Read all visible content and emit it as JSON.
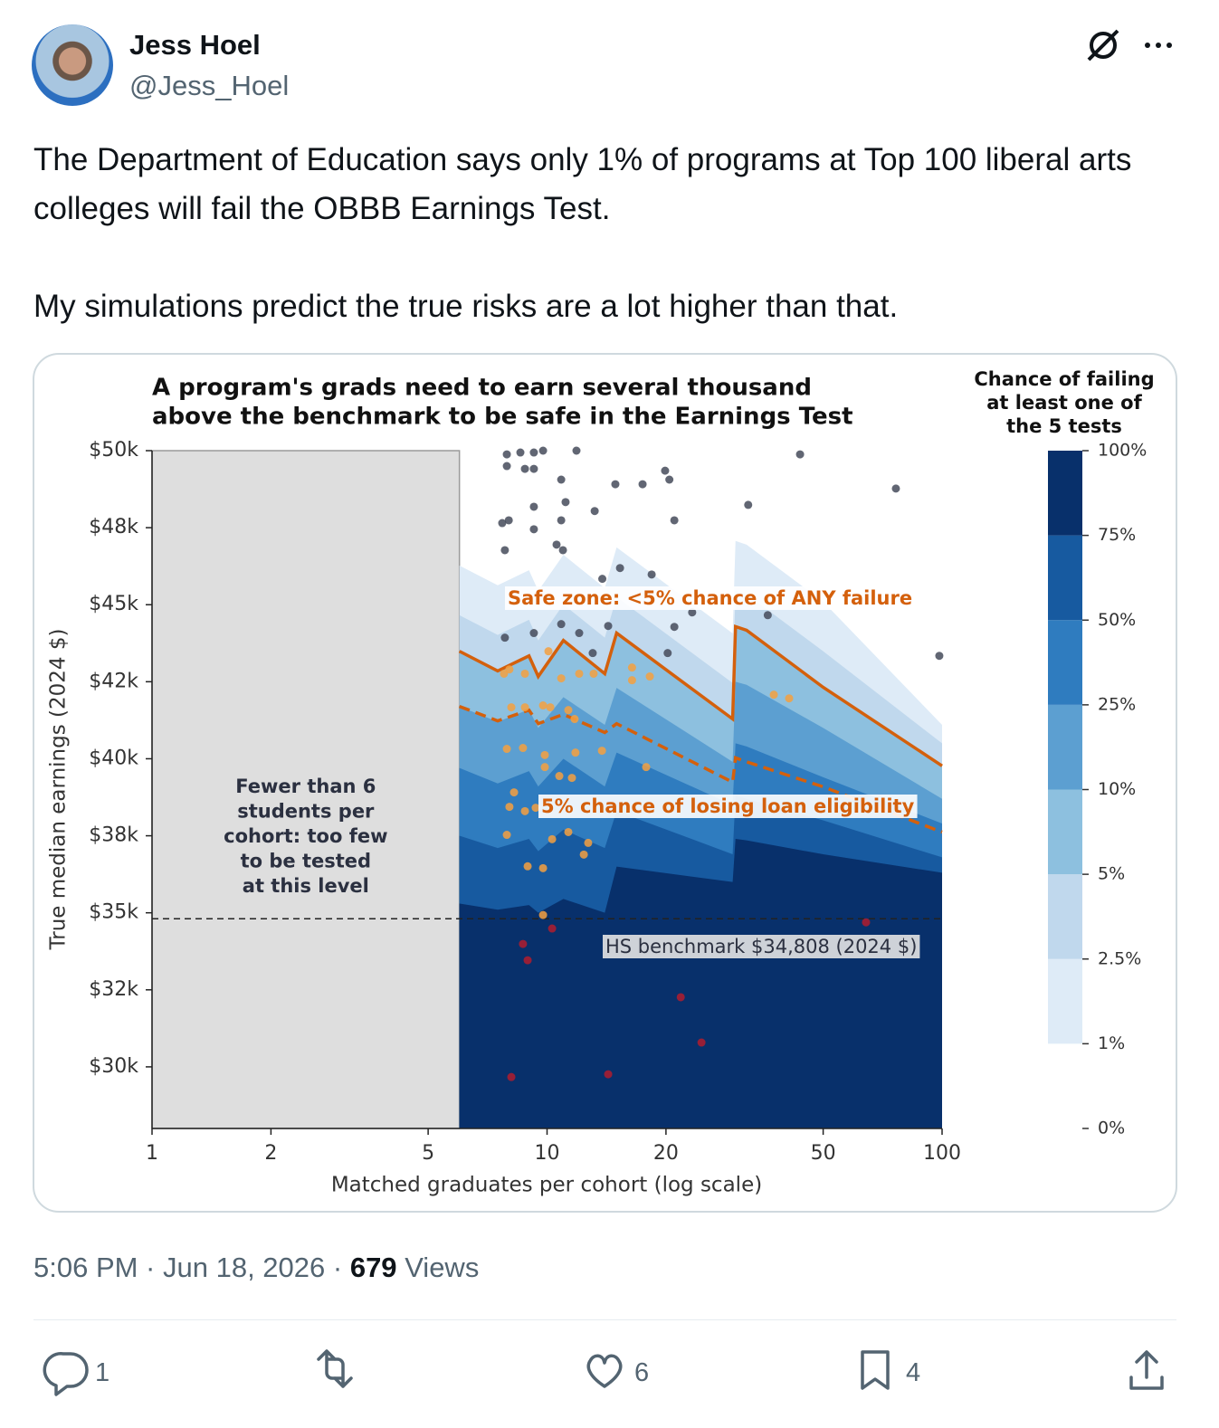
{
  "author": {
    "name": "Jess Hoel",
    "handle": "@Jess_Hoel"
  },
  "text": [
    "The Department of Education says only 1% of programs at Top 100 liberal arts colleges will fail the OBBB Earnings Test.",
    "My simulations predict the true risks are a lot higher than that."
  ],
  "chart_data": {
    "type": "contour",
    "title": [
      "A program's grads need to earn several thousand",
      "above the benchmark to be safe in the Earnings Test"
    ],
    "x_label": "Matched graduates per cohort (log scale)",
    "y_label": "True median earnings (2024 $)",
    "xscale": "log",
    "xlim": [
      1,
      100
    ],
    "xticks": [
      1,
      2,
      5,
      10,
      20,
      50,
      100
    ],
    "ylim": [
      28000,
      50000
    ],
    "yticks": [
      {
        "value": 30000,
        "label": "$30k"
      },
      {
        "value": 32500,
        "label": "$32k"
      },
      {
        "value": 35000,
        "label": "$35k"
      },
      {
        "value": 37500,
        "label": "$38k"
      },
      {
        "value": 40000,
        "label": "$40k"
      },
      {
        "value": 42500,
        "label": "$42k"
      },
      {
        "value": 45000,
        "label": "$45k"
      },
      {
        "value": 47500,
        "label": "$48k"
      },
      {
        "value": 50000,
        "label": "$50k"
      }
    ],
    "min_cohort": 6,
    "gray_zone_label": [
      "Fewer than 6",
      "students per",
      "cohort: too few",
      "to be tested",
      "at this level"
    ],
    "benchmark": 34808,
    "x": [
      6,
      7.5,
      9,
      9.5,
      11,
      14,
      15,
      29.5,
      30,
      32,
      50,
      100
    ],
    "contours": [
      {
        "level": 1,
        "color": "#deebf7",
        "values": [
          46270,
          45630,
          46120,
          45450,
          46620,
          45540,
          46860,
          44070,
          47070,
          46950,
          45100,
          41100
        ]
      },
      {
        "level": 2.5,
        "color": "#c0d8ed",
        "values": [
          44660,
          44020,
          44510,
          43840,
          45010,
          43930,
          45250,
          42460,
          45460,
          45340,
          43490,
          40500
        ]
      },
      {
        "level": 5,
        "color": "#8dc0df",
        "values": [
          43490,
          42850,
          43340,
          42670,
          43840,
          42760,
          44080,
          41290,
          44290,
          44170,
          42320,
          39770
        ]
      },
      {
        "level": 10,
        "color": "#5c9fd1",
        "values": [
          41700,
          41200,
          41600,
          41000,
          42000,
          41100,
          42300,
          39900,
          42500,
          42400,
          41000,
          38700
        ]
      },
      {
        "level": 25,
        "color": "#2f7cbf",
        "values": [
          39700,
          39200,
          39600,
          39100,
          40000,
          39100,
          40200,
          38500,
          40500,
          40400,
          39400,
          37900
        ]
      },
      {
        "level": 50,
        "color": "#175aa0",
        "values": [
          37500,
          37100,
          37400,
          37000,
          37700,
          37100,
          38300,
          36900,
          38800,
          38700,
          38000,
          36800
        ]
      },
      {
        "level": 75,
        "color": "#08306b",
        "values": [
          35300,
          35100,
          35250,
          35000,
          35450,
          35000,
          36500,
          36000,
          37400,
          37350,
          36900,
          36300
        ]
      }
    ],
    "lines": [
      {
        "color": "#d4600c",
        "dashed": false,
        "values": [
          43490,
          42850,
          43340,
          42670,
          43840,
          42760,
          44080,
          41290,
          44290,
          44170,
          42320,
          39770
        ]
      },
      {
        "color": "#d4600c",
        "dashed": true,
        "values": [
          41700,
          41230,
          41580,
          41140,
          41440,
          40850,
          41140,
          39240,
          40030,
          39900,
          39090,
          37620
        ]
      }
    ],
    "scatter": [
      {
        "color": "#454b5a",
        "x": [
          7.91,
          8.56,
          9.26,
          9.77,
          11.87,
          7.91,
          8.79,
          9.26,
          10.86,
          14.89,
          17.45,
          19.9,
          20.4,
          9.26,
          11.14,
          13.2,
          8.0,
          7.7,
          9.26,
          10.86,
          21.0,
          32.3,
          43.7,
          76.4,
          7.82,
          10.57,
          10.97,
          15.3,
          18.4,
          13.8,
          7.82,
          9.26,
          10.86,
          12.06,
          14.28,
          21.0,
          23.3,
          36.2,
          98.4,
          20.2,
          13.05
        ],
        "y": [
          49880,
          49940,
          49940,
          50000,
          50000,
          49500,
          49410,
          49410,
          49060,
          48910,
          48910,
          49350,
          49060,
          48180,
          48330,
          48040,
          47740,
          47650,
          47450,
          47740,
          47740,
          48240,
          49880,
          48770,
          46770,
          46950,
          46770,
          46190,
          45980,
          45840,
          43930,
          44080,
          44370,
          44080,
          44310,
          44280,
          44750,
          44660,
          43340,
          43430,
          43430
        ]
      },
      {
        "color": "#f5a040",
        "x": [
          7.78,
          8.03,
          8.79,
          10.08,
          10.86,
          12.06,
          13.12,
          16.41,
          16.41,
          18.2,
          8.12,
          8.79,
          9.77,
          10.19,
          11.32,
          11.74,
          7.91,
          8.69,
          9.87,
          11.8,
          13.77,
          17.82,
          9.87,
          10.74,
          11.56,
          8.25,
          8.03,
          8.79,
          9.36,
          11.32,
          10.3,
          12.71,
          12.39,
          7.91,
          8.93,
          9.77,
          9.77,
          37.5,
          41.0
        ],
        "y": [
          42760,
          42900,
          42760,
          43490,
          42610,
          42760,
          42760,
          42960,
          42550,
          42670,
          41670,
          41670,
          41730,
          41670,
          41580,
          41290,
          40320,
          40350,
          40120,
          40200,
          40260,
          39730,
          39730,
          39440,
          39380,
          38910,
          38440,
          38300,
          38410,
          37620,
          37390,
          37270,
          36890,
          37530,
          36510,
          36450,
          34930,
          42080,
          41960
        ]
      },
      {
        "color": "#b01c2e",
        "x": [
          8.69,
          8.93,
          10.3,
          8.12,
          14.28,
          21.8,
          24.6,
          64.2
        ],
        "y": [
          33990,
          33460,
          34490,
          29670,
          29760,
          32260,
          30790,
          34690
        ]
      }
    ],
    "annotations": {
      "safe_zone": "Safe zone: <5% chance of ANY failure",
      "loan": "5% chance of losing loan eligibility",
      "benchmark_label": "HS benchmark $34,808 (2024 $)"
    },
    "colorbar": {
      "title": [
        "Chance of failing",
        "at least one of",
        "the 5 tests"
      ],
      "ticks": [
        {
          "value": 0,
          "label": "0%"
        },
        {
          "value": 1,
          "label": "1%"
        },
        {
          "value": 2.5,
          "label": "2.5%"
        },
        {
          "value": 5,
          "label": "5%"
        },
        {
          "value": 10,
          "label": "10%"
        },
        {
          "value": 25,
          "label": "25%"
        },
        {
          "value": 50,
          "label": "50%"
        },
        {
          "value": 75,
          "label": "75%"
        },
        {
          "value": 100,
          "label": "100%"
        }
      ]
    }
  },
  "timestamp": "5:06 PM · Jun 18, 2026 ·",
  "views": 679,
  "views_label": "Views",
  "reply_count": 1,
  "like_count": 6,
  "bookmark_count": 4
}
